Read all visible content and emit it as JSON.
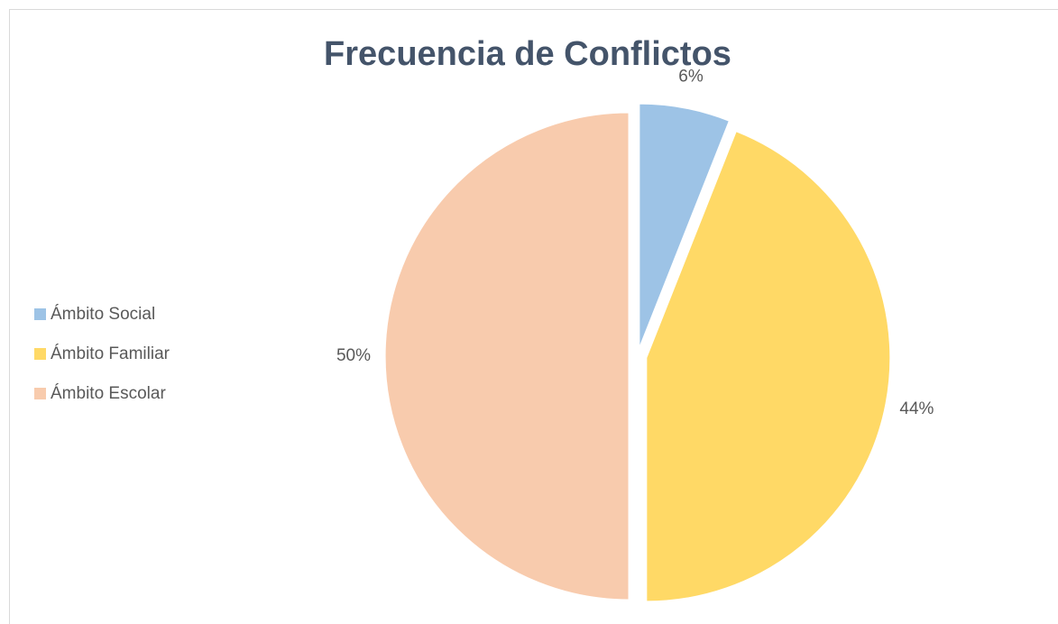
{
  "chart_data": {
    "type": "pie",
    "title": "Frecuencia de Conflictos",
    "categories": [
      "Ámbito Social",
      "Ámbito Familiar",
      "Ámbito Escolar"
    ],
    "values": [
      6,
      44,
      50
    ],
    "value_labels": [
      "6%",
      "44%",
      "50%"
    ],
    "colors": [
      "#9dc3e6",
      "#ffd966",
      "#f8cbad"
    ],
    "legend": "left"
  }
}
